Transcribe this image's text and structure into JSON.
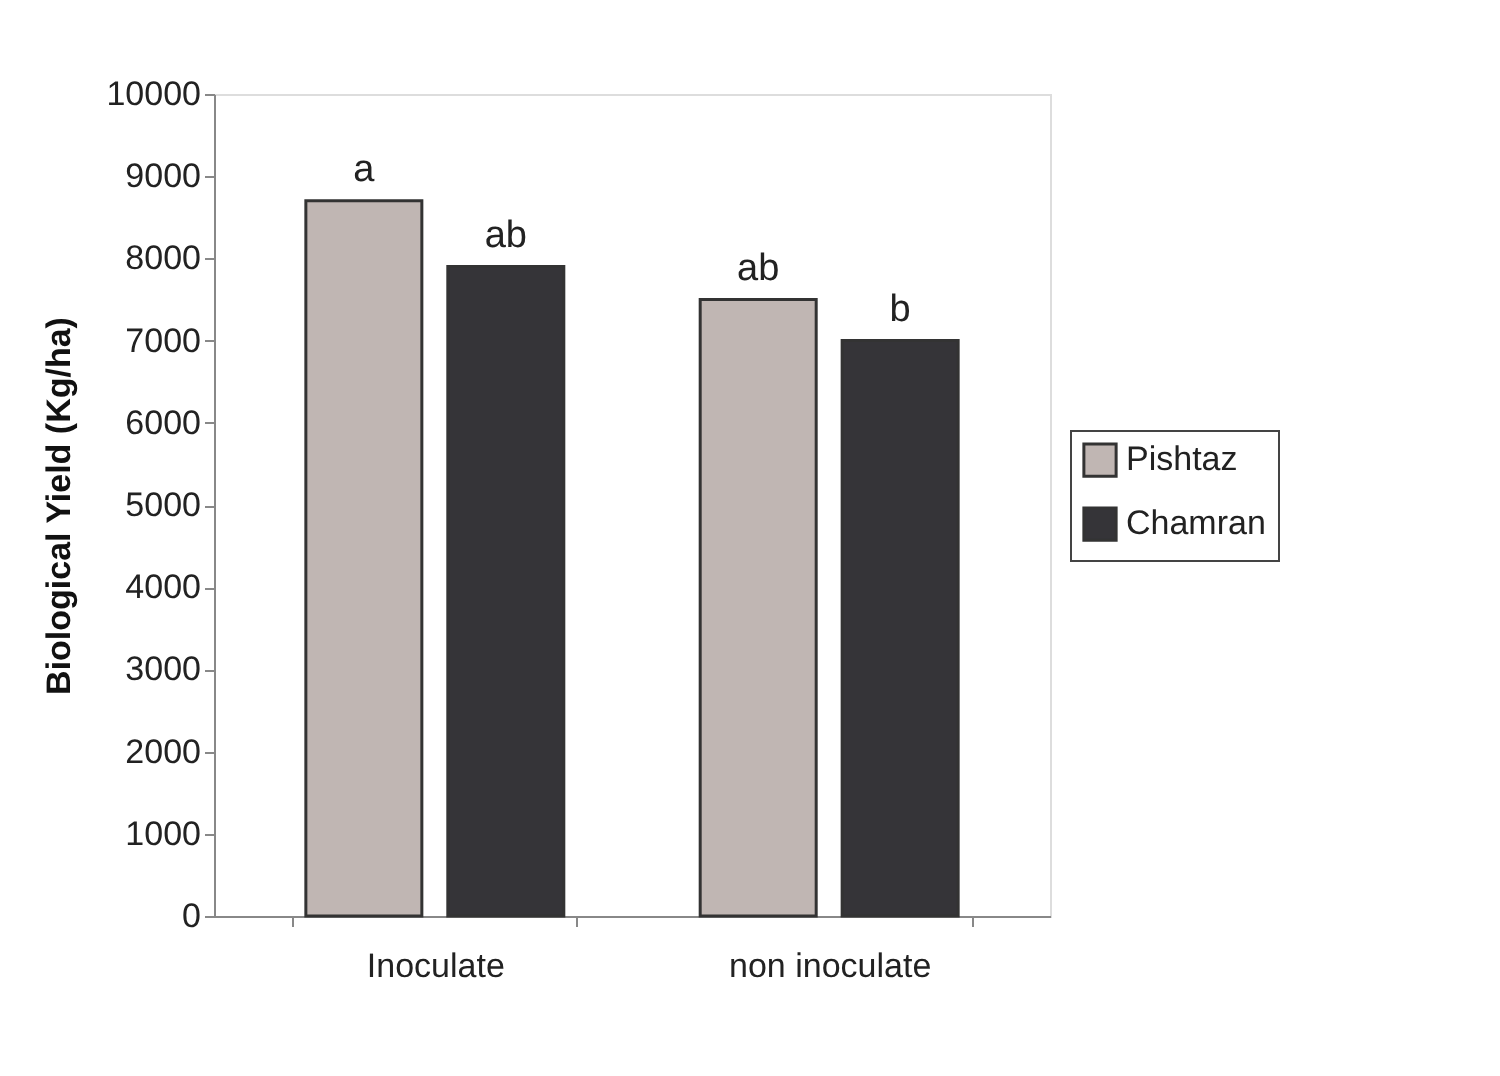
{
  "chart_data": {
    "type": "bar",
    "ylabel": "Biological Yield (Kg/ha)",
    "categories": [
      "Inoculate",
      "non inoculate"
    ],
    "series": [
      {
        "name": "Pishtaz",
        "color": "#c0b6b3",
        "values": [
          8700,
          7500
        ],
        "value_labels": [
          "a",
          "ab"
        ]
      },
      {
        "name": "Chamran",
        "color": "#353438",
        "values": [
          7900,
          7000
        ],
        "value_labels": [
          "ab",
          "b"
        ]
      }
    ],
    "ylim": [
      0,
      10000
    ],
    "yticks": [
      0,
      1000,
      2000,
      3000,
      4000,
      5000,
      6000,
      7000,
      8000,
      9000,
      10000
    ],
    "grid": false,
    "legend": "right"
  }
}
